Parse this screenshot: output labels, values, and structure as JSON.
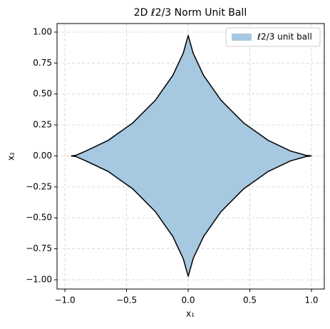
{
  "chart_data": {
    "type": "area",
    "title": "2D ℓ2/3 Norm Unit Ball",
    "xlabel": "x₁",
    "ylabel": "x₂",
    "series": [
      {
        "name": "ℓ2/3 unit ball",
        "color": "#a6c8e0",
        "edge_color": "#000000",
        "x": [
          1,
          0.955,
          0.83,
          0.65,
          0.45,
          0.266,
          0.125,
          0.04,
          0.005,
          0,
          -0.005,
          -0.04,
          -0.125,
          -0.266,
          -0.45,
          -0.65,
          -0.83,
          -0.91,
          -0.95,
          -0.91,
          -0.83,
          -0.65,
          -0.45,
          -0.266,
          -0.125,
          -0.04,
          -0.005,
          0,
          0.005,
          0.04,
          0.125,
          0.266,
          0.45,
          0.65,
          0.83,
          0.955
        ],
        "values": [
          0,
          0.005,
          0.04,
          0.125,
          0.266,
          0.45,
          0.65,
          0.83,
          0.955,
          0.97,
          0.955,
          0.83,
          0.65,
          0.45,
          0.266,
          0.125,
          0.04,
          0.005,
          0,
          -0.005,
          -0.04,
          -0.125,
          -0.266,
          -0.45,
          -0.65,
          -0.83,
          -0.955,
          -0.97,
          -0.955,
          -0.83,
          -0.65,
          -0.45,
          -0.266,
          -0.125,
          -0.04,
          -0.005
        ]
      }
    ],
    "xlim": [
      -1.064,
      1.104
    ],
    "ylim": [
      -1.075,
      1.069
    ],
    "xticks": [
      {
        "value": -1,
        "label": "−1.0"
      },
      {
        "value": -0.5,
        "label": "−0.5"
      },
      {
        "value": 0,
        "label": "0.0"
      },
      0.5,
      {
        "value": 1,
        "label": "1.0"
      }
    ],
    "yticks": [
      {
        "value": -1,
        "label": "−1.00"
      },
      {
        "value": -0.75,
        "label": "−0.75"
      },
      {
        "value": -0.5,
        "label": "−0.50"
      },
      {
        "value": -0.25,
        "label": "−0.25"
      },
      {
        "value": 0,
        "label": "0.00"
      },
      0.25,
      {
        "value": 0.5,
        "label": "0.50"
      },
      0.75,
      {
        "value": 1,
        "label": "1.00"
      }
    ],
    "grid": true,
    "legend": "upper right"
  }
}
